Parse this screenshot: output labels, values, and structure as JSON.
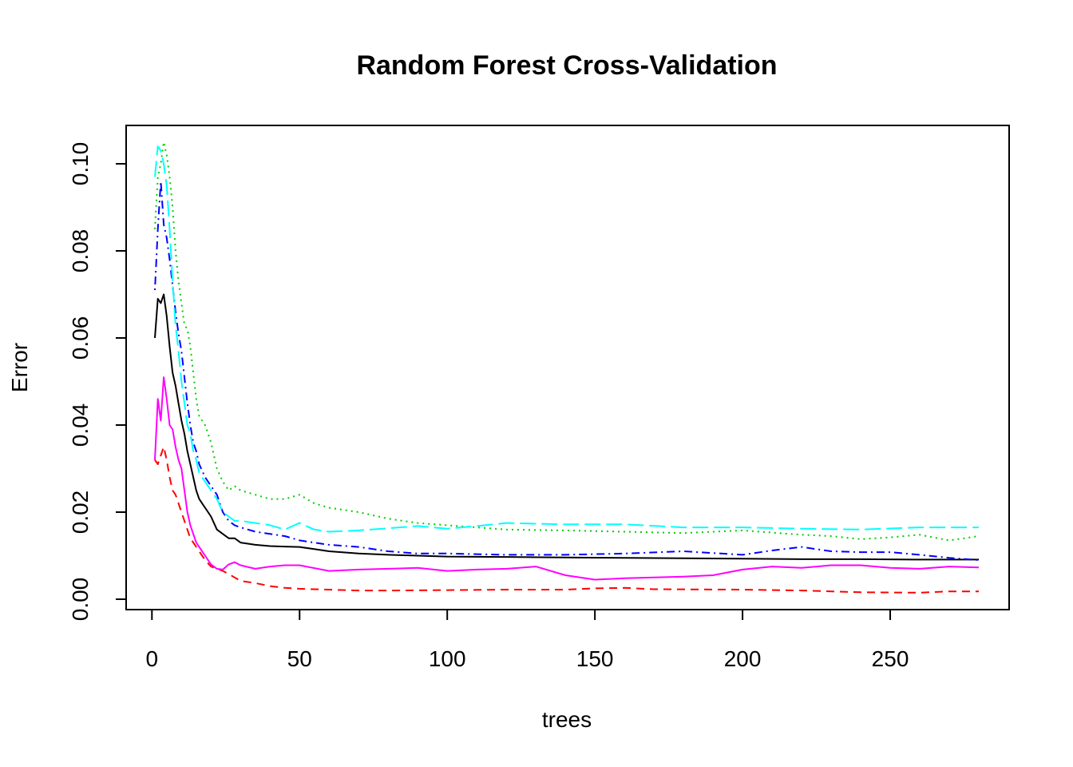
{
  "chart_data": {
    "type": "line",
    "title": "Random Forest Cross-Validation",
    "xlabel": "trees",
    "ylabel": "Error",
    "xlim": [
      1,
      280
    ],
    "ylim": [
      0,
      0.105
    ],
    "xticks": [
      0,
      50,
      100,
      150,
      200,
      250
    ],
    "xtick_labels": [
      "0",
      "50",
      "100",
      "150",
      "200",
      "250"
    ],
    "yticks": [
      0,
      0.02,
      0.04,
      0.06,
      0.08,
      0.1
    ],
    "ytick_labels": [
      "0.00",
      "0.02",
      "0.04",
      "0.06",
      "0.08",
      "0.10"
    ],
    "grid": false,
    "legend": "none",
    "series": [
      {
        "color": "#000000",
        "dash": "solid",
        "points": [
          [
            1,
            0.06
          ],
          [
            2,
            0.069
          ],
          [
            3,
            0.068
          ],
          [
            4,
            0.07
          ],
          [
            5,
            0.065
          ],
          [
            6,
            0.058
          ],
          [
            7,
            0.052
          ],
          [
            8,
            0.049
          ],
          [
            9,
            0.045
          ],
          [
            10,
            0.041
          ],
          [
            11,
            0.038
          ],
          [
            12,
            0.034
          ],
          [
            13,
            0.031
          ],
          [
            14,
            0.028
          ],
          [
            15,
            0.025
          ],
          [
            16,
            0.023
          ],
          [
            18,
            0.021
          ],
          [
            20,
            0.019
          ],
          [
            22,
            0.016
          ],
          [
            24,
            0.015
          ],
          [
            26,
            0.014
          ],
          [
            28,
            0.014
          ],
          [
            30,
            0.013
          ],
          [
            35,
            0.0125
          ],
          [
            40,
            0.0122
          ],
          [
            45,
            0.0121
          ],
          [
            50,
            0.012
          ],
          [
            55,
            0.0115
          ],
          [
            60,
            0.011
          ],
          [
            70,
            0.0105
          ],
          [
            80,
            0.0102
          ],
          [
            90,
            0.01
          ],
          [
            100,
            0.0098
          ],
          [
            120,
            0.0097
          ],
          [
            140,
            0.0096
          ],
          [
            160,
            0.0095
          ],
          [
            180,
            0.0094
          ],
          [
            200,
            0.0093
          ],
          [
            220,
            0.0092
          ],
          [
            240,
            0.0092
          ],
          [
            260,
            0.0091
          ],
          [
            280,
            0.0091
          ]
        ]
      },
      {
        "color": "#ff0000",
        "dash": "dashed",
        "points": [
          [
            1,
            0.032
          ],
          [
            2,
            0.031
          ],
          [
            3,
            0.033
          ],
          [
            4,
            0.035
          ],
          [
            5,
            0.032
          ],
          [
            6,
            0.028
          ],
          [
            7,
            0.025
          ],
          [
            8,
            0.024
          ],
          [
            9,
            0.022
          ],
          [
            10,
            0.02
          ],
          [
            11,
            0.018
          ],
          [
            12,
            0.016
          ],
          [
            13,
            0.014
          ],
          [
            14,
            0.013
          ],
          [
            15,
            0.012
          ],
          [
            16,
            0.011
          ],
          [
            18,
            0.009
          ],
          [
            20,
            0.0075
          ],
          [
            22,
            0.007
          ],
          [
            24,
            0.0065
          ],
          [
            26,
            0.0058
          ],
          [
            28,
            0.005
          ],
          [
            30,
            0.0042
          ],
          [
            35,
            0.0037
          ],
          [
            40,
            0.003
          ],
          [
            45,
            0.0026
          ],
          [
            50,
            0.0024
          ],
          [
            60,
            0.0022
          ],
          [
            70,
            0.002
          ],
          [
            80,
            0.002
          ],
          [
            100,
            0.0021
          ],
          [
            120,
            0.0022
          ],
          [
            140,
            0.0022
          ],
          [
            150,
            0.0025
          ],
          [
            160,
            0.0026
          ],
          [
            170,
            0.0023
          ],
          [
            200,
            0.0022
          ],
          [
            220,
            0.002
          ],
          [
            240,
            0.0016
          ],
          [
            260,
            0.0015
          ],
          [
            270,
            0.0018
          ],
          [
            280,
            0.0018
          ]
        ]
      },
      {
        "color": "#00cd00",
        "dash": "dotted",
        "points": [
          [
            1,
            0.085
          ],
          [
            2,
            0.097
          ],
          [
            3,
            0.1
          ],
          [
            4,
            0.105
          ],
          [
            5,
            0.102
          ],
          [
            6,
            0.097
          ],
          [
            7,
            0.09
          ],
          [
            8,
            0.08
          ],
          [
            9,
            0.073
          ],
          [
            10,
            0.068
          ],
          [
            11,
            0.063
          ],
          [
            12,
            0.062
          ],
          [
            13,
            0.058
          ],
          [
            14,
            0.052
          ],
          [
            15,
            0.046
          ],
          [
            16,
            0.042
          ],
          [
            18,
            0.04
          ],
          [
            20,
            0.036
          ],
          [
            22,
            0.03
          ],
          [
            24,
            0.027
          ],
          [
            26,
            0.025
          ],
          [
            28,
            0.026
          ],
          [
            30,
            0.025
          ],
          [
            35,
            0.024
          ],
          [
            40,
            0.023
          ],
          [
            45,
            0.023
          ],
          [
            50,
            0.024
          ],
          [
            55,
            0.022
          ],
          [
            60,
            0.021
          ],
          [
            70,
            0.02
          ],
          [
            80,
            0.0185
          ],
          [
            90,
            0.0175
          ],
          [
            100,
            0.017
          ],
          [
            110,
            0.0165
          ],
          [
            120,
            0.016
          ],
          [
            140,
            0.0158
          ],
          [
            160,
            0.0155
          ],
          [
            180,
            0.0152
          ],
          [
            200,
            0.0158
          ],
          [
            220,
            0.0148
          ],
          [
            230,
            0.0145
          ],
          [
            240,
            0.0138
          ],
          [
            250,
            0.0142
          ],
          [
            260,
            0.0148
          ],
          [
            270,
            0.0135
          ],
          [
            280,
            0.0145
          ]
        ]
      },
      {
        "color": "#0000ff",
        "dash": "dotdash",
        "points": [
          [
            1,
            0.071
          ],
          [
            2,
            0.085
          ],
          [
            3,
            0.096
          ],
          [
            4,
            0.086
          ],
          [
            5,
            0.083
          ],
          [
            6,
            0.078
          ],
          [
            7,
            0.072
          ],
          [
            8,
            0.066
          ],
          [
            9,
            0.061
          ],
          [
            10,
            0.057
          ],
          [
            11,
            0.051
          ],
          [
            12,
            0.045
          ],
          [
            13,
            0.04
          ],
          [
            14,
            0.036
          ],
          [
            15,
            0.034
          ],
          [
            16,
            0.031
          ],
          [
            18,
            0.028
          ],
          [
            20,
            0.026
          ],
          [
            22,
            0.024
          ],
          [
            24,
            0.02
          ],
          [
            26,
            0.018
          ],
          [
            28,
            0.017
          ],
          [
            30,
            0.0165
          ],
          [
            35,
            0.0155
          ],
          [
            40,
            0.015
          ],
          [
            45,
            0.0145
          ],
          [
            50,
            0.0135
          ],
          [
            60,
            0.0125
          ],
          [
            70,
            0.012
          ],
          [
            80,
            0.011
          ],
          [
            90,
            0.0105
          ],
          [
            100,
            0.0105
          ],
          [
            120,
            0.0102
          ],
          [
            140,
            0.0102
          ],
          [
            160,
            0.0105
          ],
          [
            180,
            0.011
          ],
          [
            200,
            0.0102
          ],
          [
            210,
            0.0112
          ],
          [
            220,
            0.012
          ],
          [
            230,
            0.011
          ],
          [
            240,
            0.0108
          ],
          [
            250,
            0.0108
          ],
          [
            260,
            0.0102
          ],
          [
            270,
            0.0095
          ],
          [
            280,
            0.009
          ]
        ]
      },
      {
        "color": "#00ffff",
        "dash": "longdash",
        "points": [
          [
            1,
            0.097
          ],
          [
            2,
            0.104
          ],
          [
            3,
            0.103
          ],
          [
            4,
            0.1
          ],
          [
            5,
            0.095
          ],
          [
            6,
            0.085
          ],
          [
            7,
            0.073
          ],
          [
            8,
            0.063
          ],
          [
            9,
            0.057
          ],
          [
            10,
            0.05
          ],
          [
            11,
            0.045
          ],
          [
            12,
            0.04
          ],
          [
            13,
            0.038
          ],
          [
            14,
            0.034
          ],
          [
            15,
            0.032
          ],
          [
            16,
            0.029
          ],
          [
            18,
            0.027
          ],
          [
            20,
            0.025
          ],
          [
            22,
            0.023
          ],
          [
            24,
            0.02
          ],
          [
            26,
            0.019
          ],
          [
            28,
            0.018
          ],
          [
            30,
            0.018
          ],
          [
            35,
            0.0175
          ],
          [
            40,
            0.017
          ],
          [
            45,
            0.016
          ],
          [
            50,
            0.0175
          ],
          [
            55,
            0.016
          ],
          [
            60,
            0.0155
          ],
          [
            70,
            0.0158
          ],
          [
            80,
            0.0163
          ],
          [
            90,
            0.0168
          ],
          [
            100,
            0.0162
          ],
          [
            110,
            0.0168
          ],
          [
            120,
            0.0175
          ],
          [
            140,
            0.0172
          ],
          [
            160,
            0.0172
          ],
          [
            180,
            0.0165
          ],
          [
            200,
            0.0165
          ],
          [
            220,
            0.0162
          ],
          [
            240,
            0.016
          ],
          [
            260,
            0.0165
          ],
          [
            280,
            0.0165
          ]
        ]
      },
      {
        "color": "#ff00ff",
        "dash": "solid",
        "points": [
          [
            1,
            0.032
          ],
          [
            2,
            0.046
          ],
          [
            3,
            0.041
          ],
          [
            4,
            0.051
          ],
          [
            5,
            0.046
          ],
          [
            6,
            0.04
          ],
          [
            7,
            0.039
          ],
          [
            8,
            0.035
          ],
          [
            9,
            0.032
          ],
          [
            10,
            0.03
          ],
          [
            11,
            0.025
          ],
          [
            12,
            0.02
          ],
          [
            13,
            0.017
          ],
          [
            14,
            0.015
          ],
          [
            15,
            0.013
          ],
          [
            16,
            0.012
          ],
          [
            18,
            0.01
          ],
          [
            20,
            0.008
          ],
          [
            22,
            0.007
          ],
          [
            24,
            0.0068
          ],
          [
            26,
            0.008
          ],
          [
            28,
            0.0085
          ],
          [
            30,
            0.0078
          ],
          [
            35,
            0.007
          ],
          [
            40,
            0.0075
          ],
          [
            45,
            0.0078
          ],
          [
            50,
            0.0078
          ],
          [
            60,
            0.0065
          ],
          [
            70,
            0.0068
          ],
          [
            80,
            0.007
          ],
          [
            90,
            0.0072
          ],
          [
            100,
            0.0065
          ],
          [
            110,
            0.0068
          ],
          [
            120,
            0.007
          ],
          [
            130,
            0.0075
          ],
          [
            140,
            0.0055
          ],
          [
            150,
            0.0045
          ],
          [
            160,
            0.0048
          ],
          [
            170,
            0.005
          ],
          [
            180,
            0.0052
          ],
          [
            190,
            0.0055
          ],
          [
            200,
            0.0068
          ],
          [
            210,
            0.0075
          ],
          [
            220,
            0.0072
          ],
          [
            230,
            0.0078
          ],
          [
            240,
            0.0078
          ],
          [
            250,
            0.0072
          ],
          [
            260,
            0.007
          ],
          [
            270,
            0.0075
          ],
          [
            280,
            0.0073
          ]
        ]
      }
    ]
  }
}
